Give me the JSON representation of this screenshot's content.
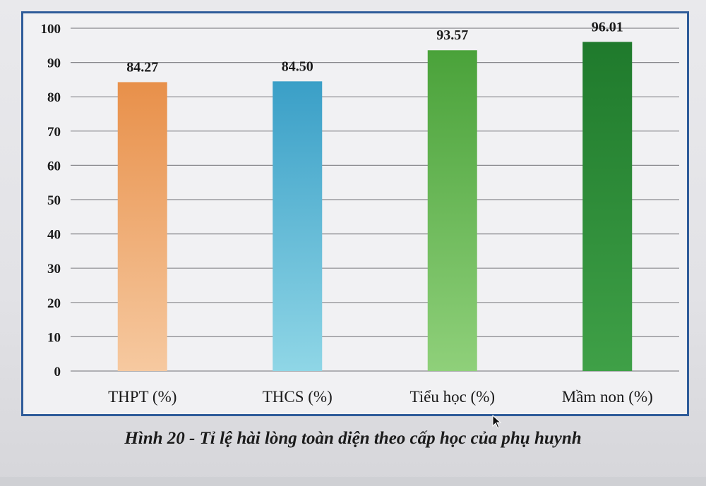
{
  "chart_data": {
    "type": "bar",
    "categories": [
      "THPT (%)",
      "THCS (%)",
      "Tiểu học (%)",
      "Mầm non (%)"
    ],
    "values": [
      84.27,
      84.5,
      93.57,
      96.01
    ],
    "value_labels": [
      "84.27",
      "84.50",
      "93.57",
      "96.01"
    ],
    "ylim": [
      0,
      100
    ],
    "yticks": [
      0,
      10,
      20,
      30,
      40,
      50,
      60,
      70,
      80,
      90,
      100
    ],
    "grid": true,
    "colors": [
      [
        "#e8904a",
        "#f6c9a0"
      ],
      [
        "#3a9fc7",
        "#8fd6e6"
      ],
      [
        "#4aa23a",
        "#8fd07a"
      ],
      [
        "#1f7a2c",
        "#3fa047"
      ]
    ]
  },
  "caption": "Hình 20 - Tỉ lệ hài lòng toàn diện theo cấp học của phụ huynh"
}
